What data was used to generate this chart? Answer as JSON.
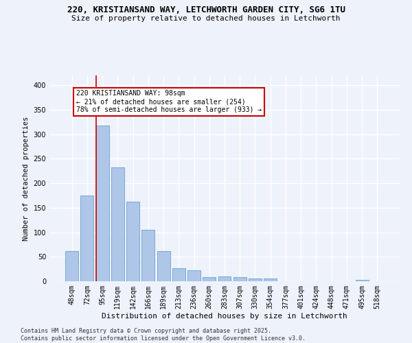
{
  "title_line1": "220, KRISTIANSAND WAY, LETCHWORTH GARDEN CITY, SG6 1TU",
  "title_line2": "Size of property relative to detached houses in Letchworth",
  "xlabel": "Distribution of detached houses by size in Letchworth",
  "ylabel": "Number of detached properties",
  "categories": [
    "48sqm",
    "72sqm",
    "95sqm",
    "119sqm",
    "142sqm",
    "166sqm",
    "189sqm",
    "213sqm",
    "236sqm",
    "260sqm",
    "283sqm",
    "307sqm",
    "330sqm",
    "354sqm",
    "377sqm",
    "401sqm",
    "424sqm",
    "448sqm",
    "471sqm",
    "495sqm",
    "518sqm"
  ],
  "values": [
    62,
    175,
    318,
    232,
    163,
    105,
    61,
    27,
    23,
    8,
    10,
    8,
    6,
    5,
    0,
    0,
    0,
    0,
    0,
    3,
    0
  ],
  "bar_color": "#aec6e8",
  "bar_edge_color": "#6a9fd0",
  "vline_pos": 1.575,
  "vline_color": "#cc0000",
  "annotation_text": "220 KRISTIANSAND WAY: 98sqm\n← 21% of detached houses are smaller (254)\n78% of semi-detached houses are larger (933) →",
  "annotation_box_facecolor": "#ffffff",
  "annotation_box_edgecolor": "#cc0000",
  "background_color": "#eef2fa",
  "grid_color": "#ffffff",
  "ylim": [
    0,
    420
  ],
  "yticks": [
    0,
    50,
    100,
    150,
    200,
    250,
    300,
    350,
    400
  ],
  "footer_line1": "Contains HM Land Registry data © Crown copyright and database right 2025.",
  "footer_line2": "Contains public sector information licensed under the Open Government Licence v3.0."
}
